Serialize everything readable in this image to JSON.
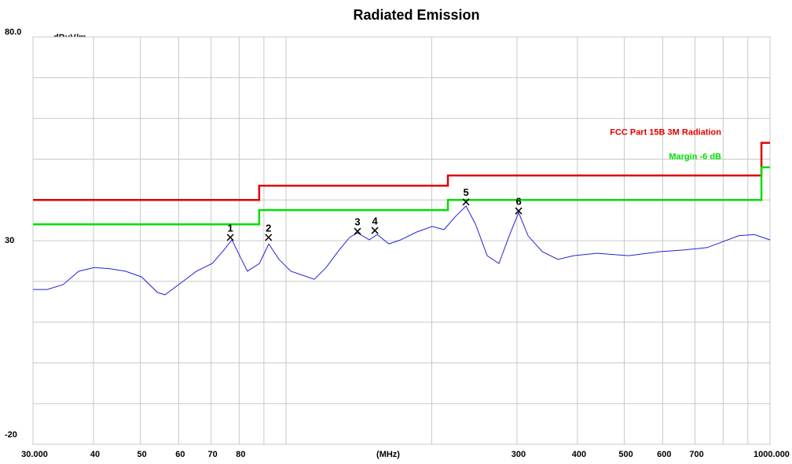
{
  "chart_data": {
    "type": "line",
    "title": "Radiated Emission",
    "y_unit": "dBuV/m",
    "x_label": "(MHz)",
    "log_x": true,
    "grid": true,
    "xlim": [
      30,
      1000
    ],
    "ylim": [
      -20,
      80
    ],
    "xticks": [
      {
        "value": 30,
        "label": "30.000"
      },
      40,
      50,
      60,
      70,
      80,
      300,
      400,
      500,
      600,
      700,
      {
        "value": 1000,
        "label": "1000.000"
      }
    ],
    "xminor": [
      90,
      100,
      200,
      800,
      900
    ],
    "yticks": [
      -20,
      30,
      {
        "value": 80,
        "label": "80.0"
      }
    ],
    "yminor": [
      -10,
      0,
      10,
      20,
      40,
      50,
      60,
      70
    ],
    "series": [
      {
        "color": "#2323d8",
        "x": [
          30,
          32.1,
          34.6,
          37.3,
          40.2,
          43.3,
          46.6,
          50.3,
          54.2,
          56.2,
          60.6,
          65.3,
          70.4,
          74.4,
          77.3,
          80.2,
          83.2,
          88.1,
          92.1,
          96.7,
          102.3,
          108.2,
          114.4,
          121.0,
          128.0,
          135.3,
          140.5,
          148.6,
          154.3,
          163.2,
          172.6,
          186.0,
          200.4,
          212.0,
          224.2,
          235.4,
          246.2,
          260.4,
          275.4,
          289.2,
          302.4,
          316.3,
          338.3,
          364.6,
          392.9,
          439.6,
          510.6,
          592.7,
          663.0,
          741.6,
          861.3,
          928.3,
          1000
        ],
        "values": [
          18.0,
          18.0,
          19.2,
          22.5,
          23.4,
          23.1,
          22.5,
          21.1,
          17.3,
          16.7,
          19.6,
          22.5,
          24.4,
          27.7,
          30.2,
          26.3,
          22.5,
          24.4,
          29.2,
          25.4,
          22.5,
          21.5,
          20.5,
          23.4,
          27.3,
          30.8,
          31.9,
          30.2,
          31.5,
          29.2,
          30.2,
          32.1,
          33.5,
          32.7,
          36.0,
          38.5,
          34.1,
          26.3,
          24.4,
          31.2,
          36.9,
          31.2,
          27.3,
          25.4,
          26.3,
          26.9,
          26.3,
          27.3,
          27.7,
          28.3,
          31.2,
          31.5,
          30.2
        ]
      },
      {
        "name": "FCC Part 15B 3M Radiation",
        "color": "#e00000",
        "x": [
          30,
          88,
          88,
          216,
          216,
          960,
          960,
          1000
        ],
        "values": [
          40,
          40,
          43.5,
          43.5,
          46,
          46,
          54,
          54
        ]
      },
      {
        "name": "Margin -6 dB",
        "color": "#00e000",
        "x": [
          30,
          88,
          88,
          216,
          216,
          960,
          960,
          1000
        ],
        "values": [
          34,
          34,
          37.5,
          37.5,
          40,
          40,
          48,
          48
        ]
      }
    ],
    "markers": {
      "labels": [
        "1",
        "2",
        "3",
        "4",
        "5",
        "6"
      ],
      "x": [
        76.7,
        92.0,
        140.5,
        152.6,
        235.4,
        302.4
      ],
      "values": [
        30.8,
        30.8,
        32.3,
        32.5,
        39.5,
        37.3
      ]
    }
  }
}
